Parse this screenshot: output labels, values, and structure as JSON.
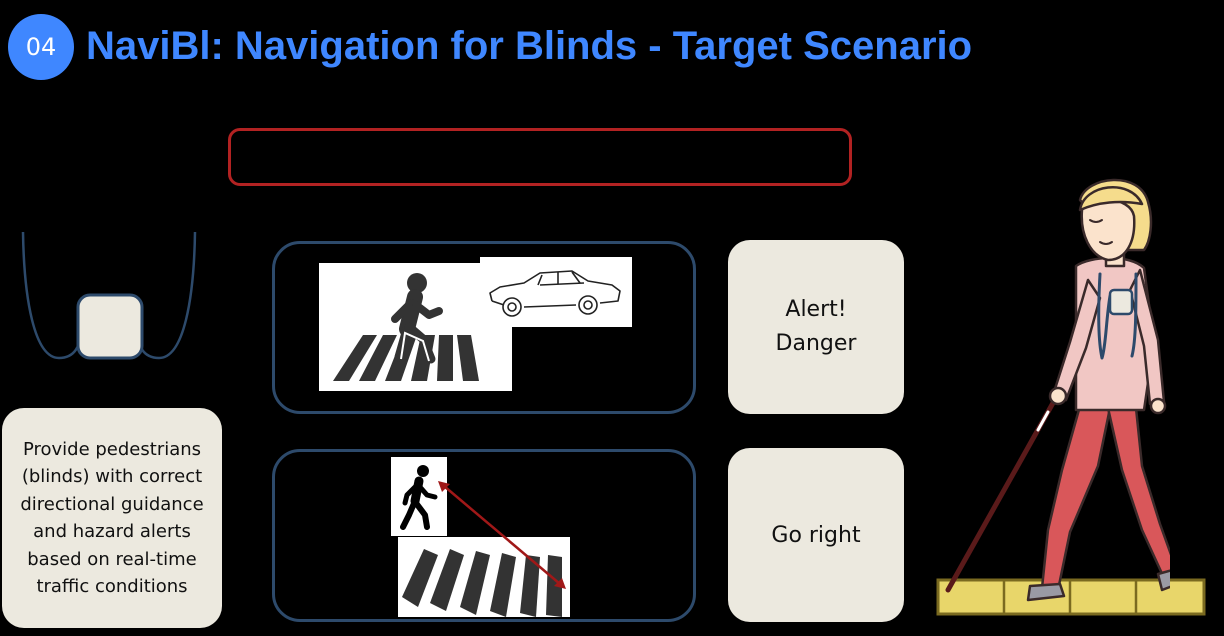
{
  "header": {
    "badge_number": "04",
    "title": "NaviBl: Navigation for Blinds - Target Scenario"
  },
  "cards": {
    "alert_line1": "Alert!",
    "alert_line2": "Danger",
    "go_right": "Go right",
    "description": "Provide pedestrians (blinds) with correct directional guidance and hazard alerts based on real-time traffic conditions"
  },
  "icons": {
    "device": "wearable-device-icon",
    "pedestrian_crossing": "pedestrian-crossing-icon",
    "car": "car-icon",
    "walker": "walking-person-icon",
    "crosswalk": "crosswalk-icon",
    "direction_arrow": "direction-arrow-icon",
    "person": "blind-person-with-cane-icon",
    "tactile_path": "tactile-paving-icon"
  },
  "colors": {
    "accent_blue": "#3f87ff",
    "alert_red": "#b22222",
    "panel_border": "#2d4a6b",
    "card_bg": "#ece9df",
    "arrow_red": "#a01818"
  }
}
